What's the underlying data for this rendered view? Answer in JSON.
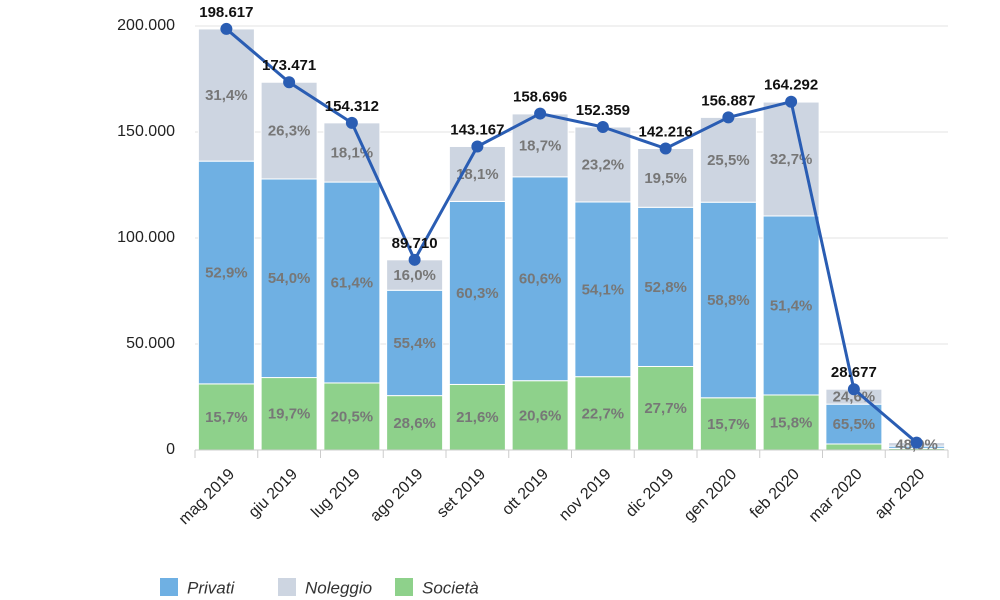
{
  "chart_data": {
    "type": "stacked-bar-line",
    "categories": [
      "mag 2019",
      "giu 2019",
      "lug 2019",
      "ago 2019",
      "set 2019",
      "ott 2019",
      "nov 2019",
      "dic 2019",
      "gen 2020",
      "feb 2020",
      "mar 2020",
      "apr 2020"
    ],
    "series": [
      {
        "name": "Privati",
        "color": "#6fb0e3",
        "values": [
          52.9,
          54.0,
          61.4,
          55.4,
          60.3,
          60.6,
          54.1,
          52.8,
          58.8,
          51.4,
          65.5,
          30
        ],
        "value_labels": [
          "52,9%",
          "54,0%",
          "61,4%",
          "55,4%",
          "60,3%",
          "60,6%",
          "54,1%",
          "52,8%",
          "58,8%",
          "51,4%",
          "65,5%",
          null
        ]
      },
      {
        "name": "Noleggio",
        "color": "#cdd5e1",
        "values": [
          31.4,
          26.3,
          18.1,
          16.0,
          18.1,
          18.7,
          23.2,
          19.5,
          25.5,
          32.7,
          24.6,
          48.0
        ],
        "value_labels": [
          "31,4%",
          "26,3%",
          "18,1%",
          "16,0%",
          "18,1%",
          "18,7%",
          "23,2%",
          "19,5%",
          "25,5%",
          "32,7%",
          "24,6%",
          "48,0%"
        ]
      },
      {
        "name": "Società",
        "color": "#8ed18b",
        "values": [
          15.7,
          19.7,
          20.5,
          28.6,
          21.6,
          20.6,
          22.7,
          27.7,
          15.7,
          15.8,
          9.9,
          22
        ],
        "value_labels": [
          "15,7%",
          "19,7%",
          "20,5%",
          "28,6%",
          "21,6%",
          "20,6%",
          "22,7%",
          "27,7%",
          "15,7%",
          "15,8%",
          null,
          null
        ]
      }
    ],
    "totals": {
      "color": "#2a5db3",
      "values": [
        198617,
        173471,
        154312,
        89710,
        143167,
        158696,
        152359,
        142216,
        156887,
        164292,
        28677,
        3500
      ],
      "value_labels": [
        "198.617",
        "173.471",
        "154.312",
        "89.710",
        "143.167",
        "158.696",
        "152.359",
        "142.216",
        "156.887",
        "164.292",
        "28.677",
        null
      ]
    },
    "ylim": [
      0,
      200000
    ],
    "yticks": [
      0,
      {
        "value": 50000,
        "label": "50.000"
      },
      {
        "value": 100000,
        "label": "100.000"
      },
      {
        "value": 150000,
        "label": "150.000"
      },
      {
        "value": 200000,
        "label": "200.000"
      }
    ],
    "grid": true,
    "legend": "bottom"
  }
}
